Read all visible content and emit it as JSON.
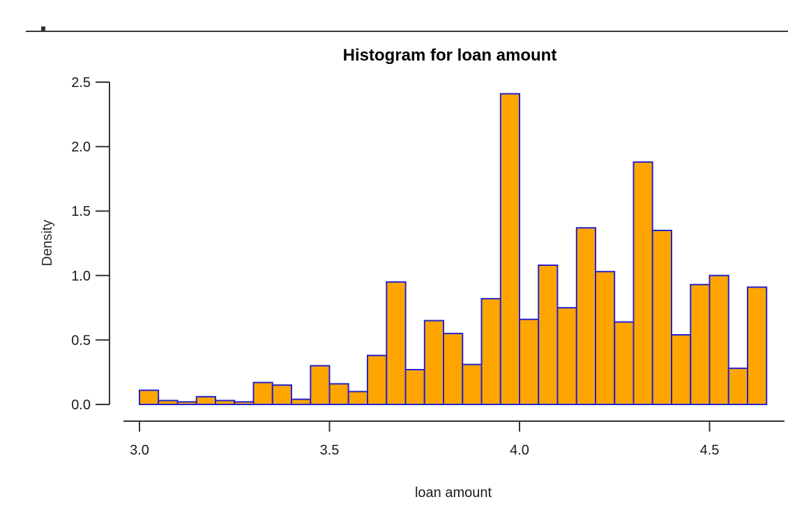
{
  "page": {
    "top_rule_color": "#3a3a3a",
    "background": "#ffffff"
  },
  "chart_data": {
    "type": "bar",
    "subtype": "histogram",
    "title": "Histogram for loan amount",
    "xlabel": "loan amount",
    "ylabel": "Density",
    "bin_start": 3.0,
    "bin_width": 0.05,
    "values": [
      0.11,
      0.03,
      0.02,
      0.06,
      0.03,
      0.02,
      0.17,
      0.15,
      0.04,
      0.3,
      0.16,
      0.1,
      0.38,
      0.95,
      0.27,
      0.65,
      0.55,
      0.31,
      0.82,
      2.41,
      0.66,
      1.08,
      0.75,
      1.37,
      1.03,
      0.64,
      1.88,
      1.35,
      0.54,
      0.93,
      1.0,
      0.28,
      0.91
    ],
    "xlim": [
      3.0,
      4.65
    ],
    "ylim": [
      0.0,
      2.5
    ],
    "x_ticks": [
      "3.0",
      "3.5",
      "4.0",
      "4.5"
    ],
    "y_ticks": [
      "0.0",
      "0.5",
      "1.0",
      "1.5",
      "2.0",
      "2.5"
    ],
    "grid": false,
    "legend_position": "none",
    "bar_fill": "#FFA500",
    "bar_border": "#2323CE",
    "axis_color": "#333333",
    "tick_text_color": "#1a1a1a"
  }
}
